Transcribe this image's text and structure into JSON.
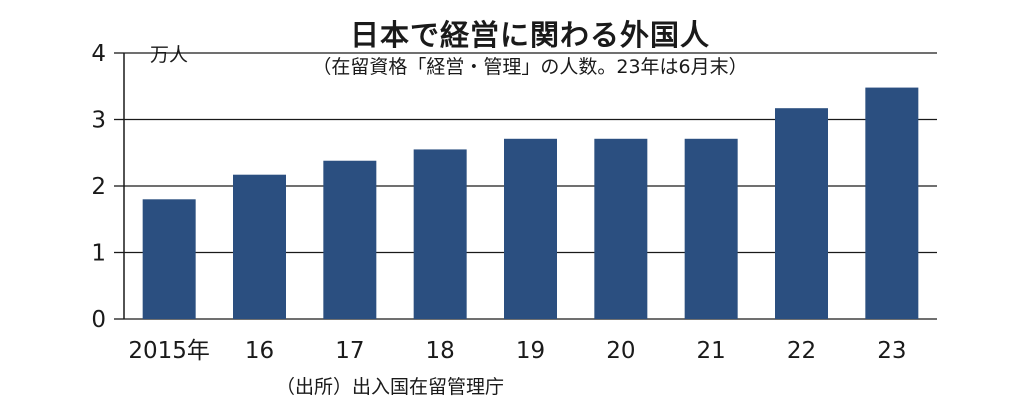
{
  "chart_data": {
    "type": "bar",
    "title": "日本で経営に関わる外国人",
    "subtitle": "（在留資格「経営・管理」の人数。23年は6月末）",
    "unit": "万人",
    "source": "（出所）出入国在留管理庁",
    "categories": [
      "2015年",
      "16",
      "17",
      "18",
      "19",
      "20",
      "21",
      "22",
      "23"
    ],
    "values": [
      1.8,
      2.17,
      2.38,
      2.55,
      2.71,
      2.71,
      2.71,
      3.17,
      3.48
    ],
    "ylim": [
      0,
      4
    ],
    "yticks": [
      "0",
      "1",
      "2",
      "3",
      "4"
    ],
    "grid": true,
    "colors": {
      "bar": "#2b4f80",
      "grid": "#1a1a1a",
      "axis": "#1a1a1a"
    }
  }
}
